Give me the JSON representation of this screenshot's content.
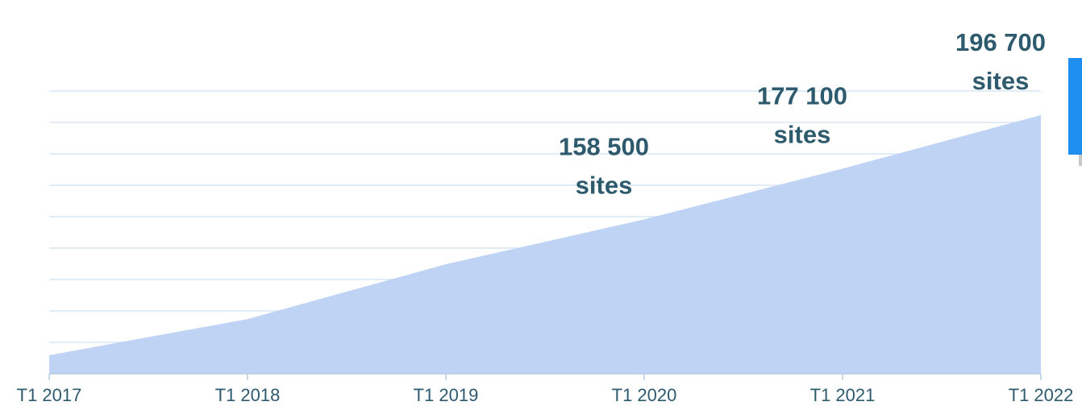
{
  "chart_data": {
    "type": "area",
    "categories": [
      "T1 2017",
      "T1 2018",
      "T1 2019",
      "T1 2020",
      "T1 2021",
      "T1 2022"
    ],
    "values": [
      108800,
      122000,
      142100,
      158500,
      177100,
      196700
    ],
    "value_labels": [
      null,
      null,
      null,
      "158 500",
      "177 100",
      "196 700"
    ],
    "value_unit": "sites",
    "color": "#bfd3f4",
    "ylim": [
      102000,
      205500
    ],
    "yticks": [
      102000,
      113500,
      125000,
      136500,
      148000,
      159500,
      171000,
      182500,
      194000,
      205500
    ],
    "grid": true
  }
}
